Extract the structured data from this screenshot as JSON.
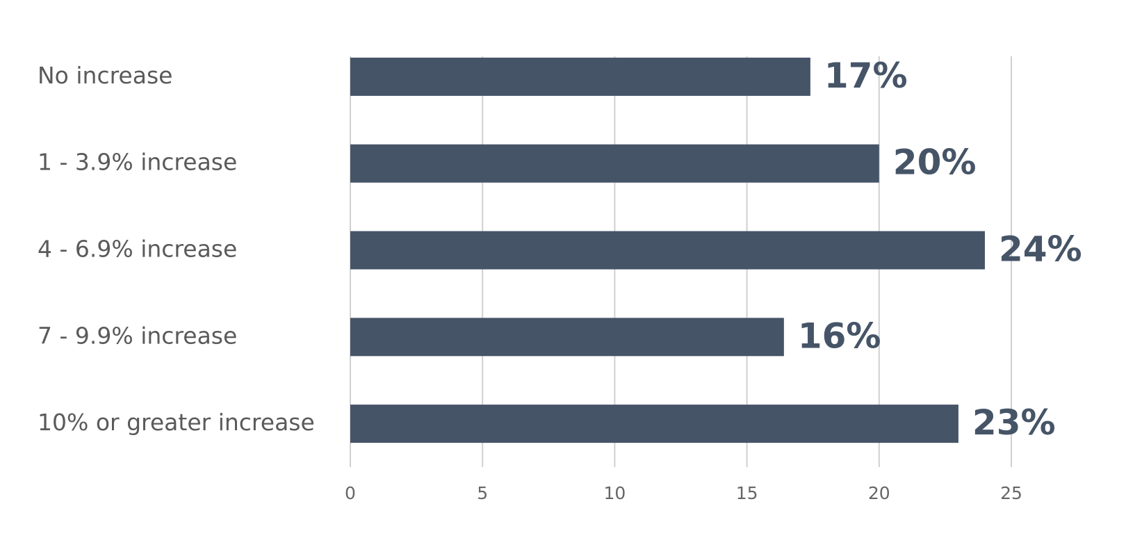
{
  "chart_data": {
    "type": "barh",
    "categories": [
      "No increase",
      "1 - 3.9% increase",
      "4 - 6.9% increase",
      "7 - 9.9% increase",
      "10% or greater increase"
    ],
    "values": [
      17.4,
      20,
      24,
      16.4,
      23
    ],
    "value_labels": [
      "17%",
      "20%",
      "24%",
      "16%",
      "23%"
    ],
    "color": "#465467",
    "xlim": [
      0,
      25
    ],
    "xticks": [
      0,
      5,
      10,
      15,
      20,
      25
    ],
    "grid": true
  }
}
